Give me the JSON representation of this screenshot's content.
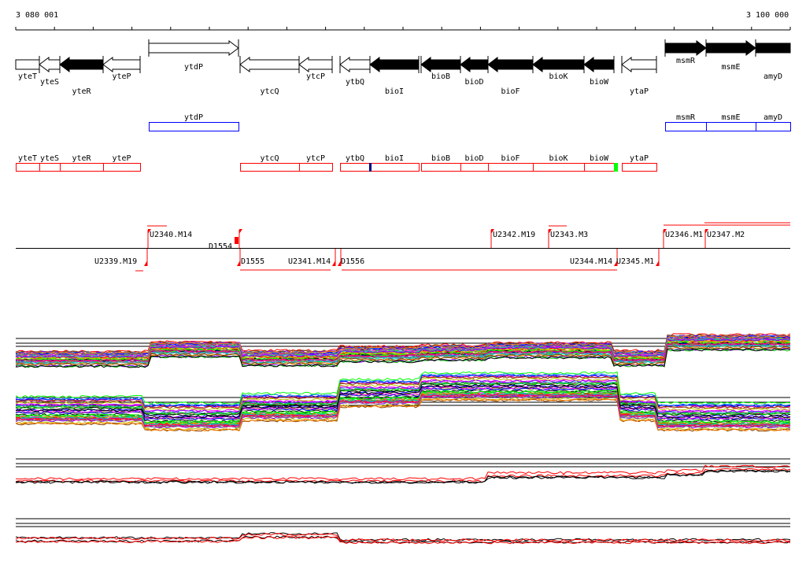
{
  "ruler": {
    "start_label": "3 080 001",
    "end_label": "3 100 000"
  },
  "genes": [
    "yteT",
    "yteS",
    "yteR",
    "yteP",
    "ytdP",
    "ytcQ",
    "ytcP",
    "ytbQ",
    "bioI",
    "bioB",
    "bioD",
    "bioF",
    "bioK",
    "bioW",
    "ytaP",
    "msmR",
    "msmE",
    "amyD"
  ],
  "operons_blue": [
    "ytdP",
    "msmR",
    "msmE",
    "amyD"
  ],
  "operons_red": [
    "yteT",
    "yteS",
    "yteR",
    "yteP",
    "ytcQ",
    "ytcP",
    "ytbQ",
    "bioI",
    "bioB",
    "bioD",
    "bioF",
    "bioK",
    "bioW",
    "ytaP"
  ],
  "probes_above": [
    "U2340.M14",
    "D1554",
    "U2342.M19",
    "U2343.M3",
    "U2346.M1",
    "U2347.M2"
  ],
  "probes_below": [
    "U2339.M19",
    "D1555",
    "U2341.M14",
    "D1556",
    "U2344.M14",
    "U2345.M1"
  ],
  "colors": {
    "operon_blue": "#0000ff",
    "operon_red": "#ff0000",
    "probe": "#ff0000",
    "marker_green": "#00ff00",
    "marker_navy": "#000080"
  }
}
